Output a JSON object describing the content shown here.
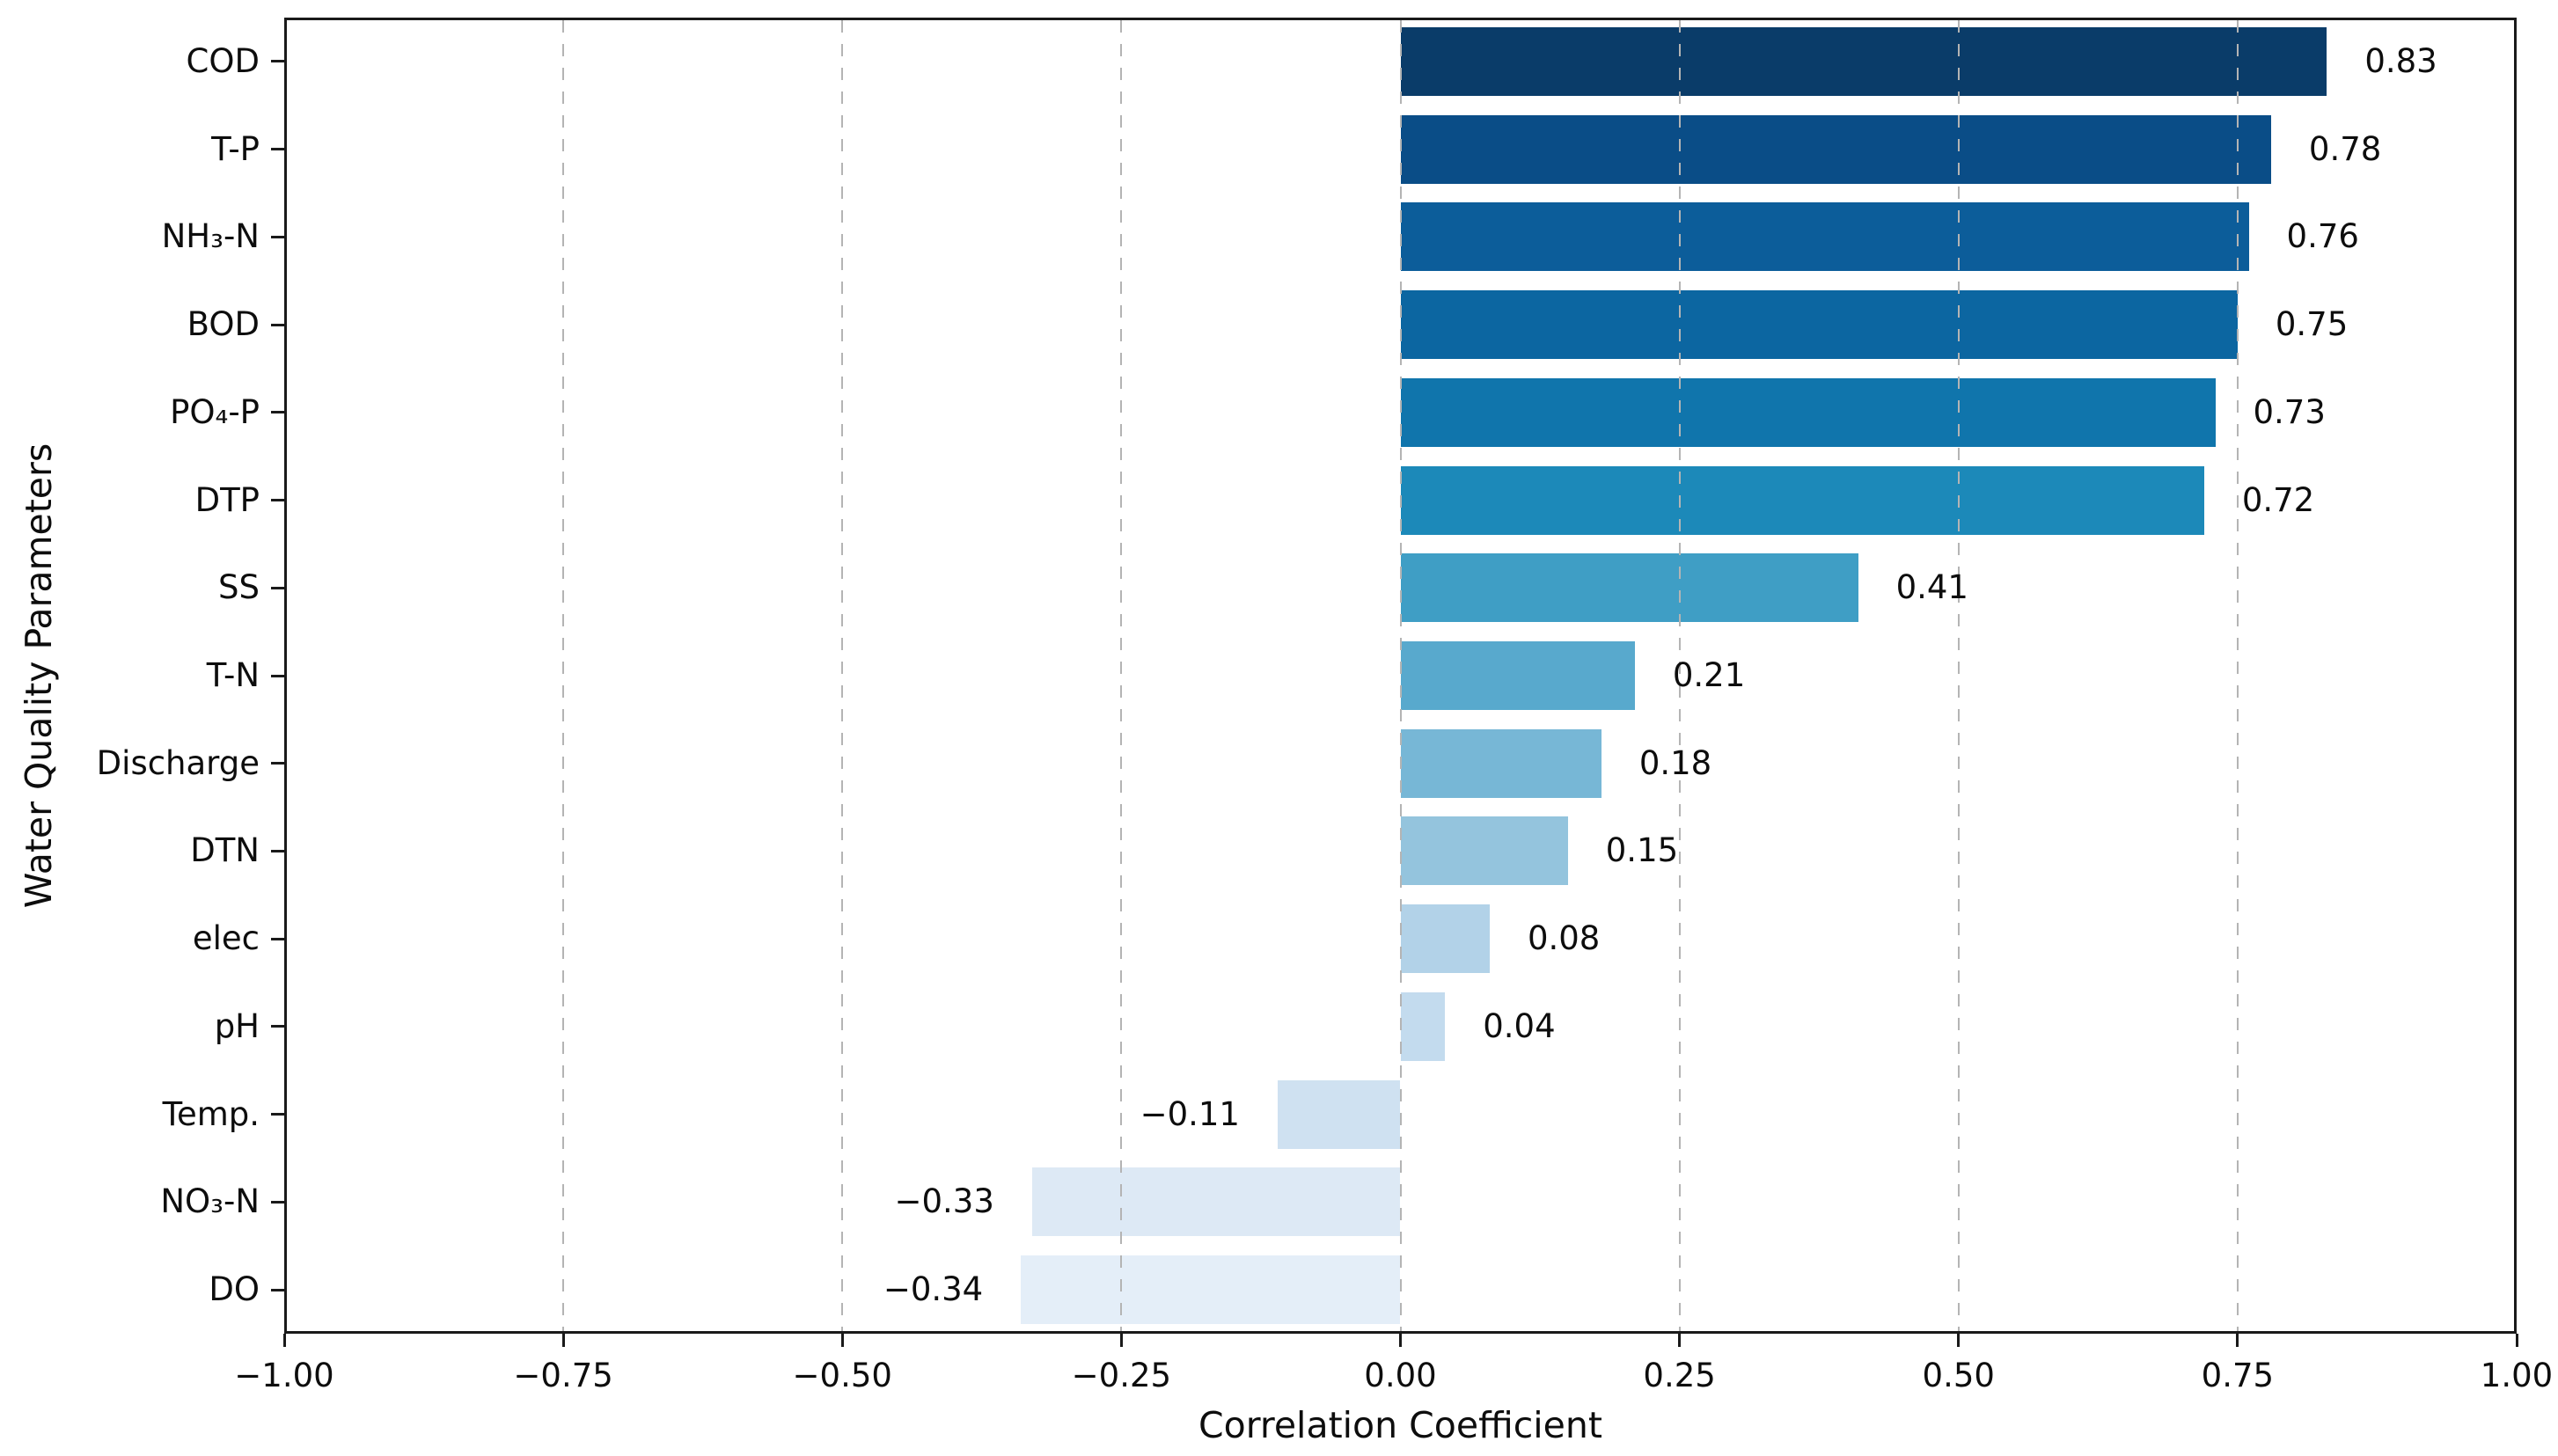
{
  "chart_data": {
    "type": "bar",
    "orientation": "horizontal",
    "title": "",
    "xlabel": "Correlation Coefficient",
    "ylabel": "Water Quality Parameters",
    "xlim": [
      -1.0,
      1.0
    ],
    "x_tick_values": [
      -1.0,
      -0.75,
      -0.5,
      -0.25,
      0.0,
      0.25,
      0.5,
      0.75,
      1.0
    ],
    "x_tick_labels": [
      "−1.00",
      "−0.75",
      "−0.50",
      "−0.25",
      "0.00",
      "0.25",
      "0.50",
      "0.75",
      "1.00"
    ],
    "grid": {
      "axis": "x",
      "linestyle": "dashed",
      "color": "#b4b4b4",
      "drawn_above_bars": true
    },
    "legend": null,
    "categories": [
      "COD",
      "T-P",
      "NH₃-N",
      "BOD",
      "PO₄-P",
      "DTP",
      "SS",
      "T-N",
      "Discharge",
      "DTN",
      "elec",
      "pH",
      "Temp.",
      "NO₃-N",
      "DO"
    ],
    "values": [
      0.83,
      0.78,
      0.76,
      0.75,
      0.73,
      0.72,
      0.41,
      0.21,
      0.18,
      0.15,
      0.08,
      0.04,
      -0.11,
      -0.33,
      -0.34
    ],
    "bars": [
      {
        "category": "COD",
        "value": 0.83,
        "label": "0.83",
        "color": "#0a3c69"
      },
      {
        "category": "T-P",
        "value": 0.78,
        "label": "0.78",
        "color": "#0a4d87"
      },
      {
        "category": "NH₃-N",
        "value": 0.76,
        "label": "0.76",
        "color": "#0c5d9a"
      },
      {
        "category": "BOD",
        "value": 0.75,
        "label": "0.75",
        "color": "#0c66a1"
      },
      {
        "category": "PO₄-P",
        "value": 0.73,
        "label": "0.73",
        "color": "#1075ac"
      },
      {
        "category": "DTP",
        "value": 0.72,
        "label": "0.72",
        "color": "#1c89b9"
      },
      {
        "category": "SS",
        "value": 0.41,
        "label": "0.41",
        "color": "#3f9ec5"
      },
      {
        "category": "T-N",
        "value": 0.21,
        "label": "0.21",
        "color": "#58a9cd"
      },
      {
        "category": "Discharge",
        "value": 0.18,
        "label": "0.18",
        "color": "#77b7d6"
      },
      {
        "category": "DTN",
        "value": 0.15,
        "label": "0.15",
        "color": "#94c4dd"
      },
      {
        "category": "elec",
        "value": 0.08,
        "label": "0.08",
        "color": "#b2d2e8"
      },
      {
        "category": "pH",
        "value": 0.04,
        "label": "0.04",
        "color": "#c3dbee"
      },
      {
        "category": "Temp.",
        "value": -0.11,
        "label": "−0.11",
        "color": "#cfe1f1"
      },
      {
        "category": "NO₃-N",
        "value": -0.33,
        "label": "−0.33",
        "color": "#dde9f5"
      },
      {
        "category": "DO",
        "value": -0.34,
        "label": "−0.34",
        "color": "#e4eef8"
      }
    ]
  },
  "colors": {
    "background": "#ffffff",
    "spine": "#1a1a1a",
    "text": "#0d0d0d",
    "grid": "#b4b4b4"
  }
}
